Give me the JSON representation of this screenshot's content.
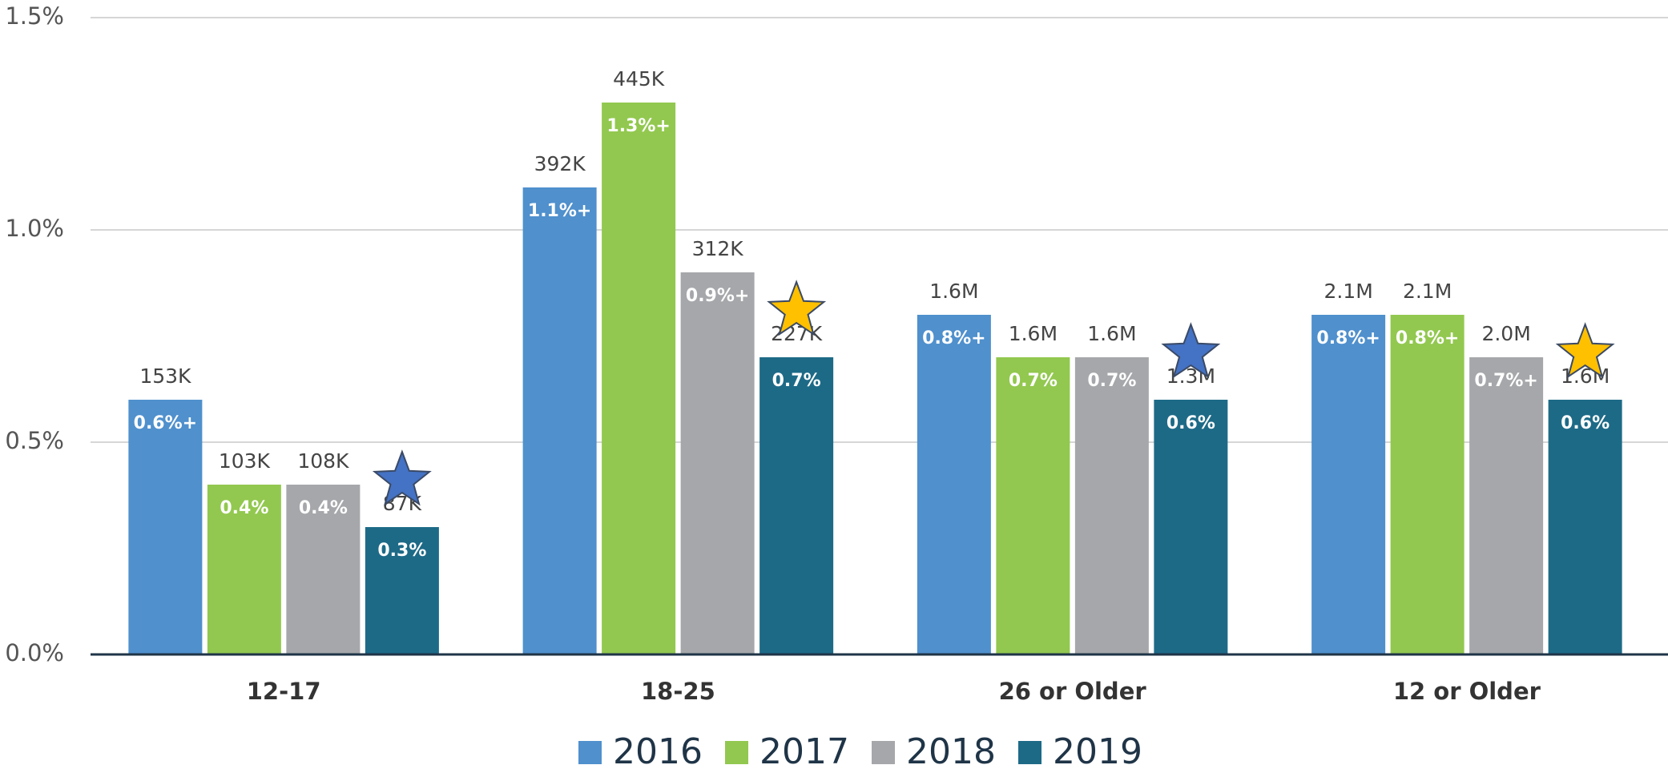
{
  "chart_data": {
    "type": "bar",
    "categories": [
      "12-17",
      "18-25",
      "26 or Older",
      "12 or Older"
    ],
    "series": [
      {
        "name": "2016",
        "color": "#4f90cd",
        "values": [
          0.6,
          1.1,
          0.8,
          0.8
        ],
        "value_labels": [
          "0.6%+",
          "1.1%+",
          "0.8%+",
          "0.8%+"
        ],
        "count_labels": [
          "153K",
          "392K",
          "1.6M",
          "2.1M"
        ]
      },
      {
        "name": "2017",
        "color": "#92c84f",
        "values": [
          0.4,
          1.3,
          0.7,
          0.8
        ],
        "value_labels": [
          "0.4%",
          "1.3%+",
          "0.7%",
          "0.8%+"
        ],
        "count_labels": [
          "103K",
          "445K",
          "1.6M",
          "2.1M"
        ]
      },
      {
        "name": "2018",
        "color": "#a5a7aa",
        "values": [
          0.4,
          0.9,
          0.7,
          0.7
        ],
        "value_labels": [
          "0.4%",
          "0.9%+",
          "0.7%",
          "0.7%+"
        ],
        "count_labels": [
          "108K",
          "312K",
          "1.6M",
          "2.0M"
        ]
      },
      {
        "name": "2019",
        "color": "#1d6a87",
        "values": [
          0.3,
          0.7,
          0.6,
          0.6
        ],
        "value_labels": [
          "0.3%",
          "0.7%",
          "0.6%",
          "0.6%"
        ],
        "count_labels": [
          "87K",
          "227K",
          "1.3M",
          "1.6M"
        ]
      }
    ],
    "star_colors": [
      "#4472c4",
      "#ffc000",
      "#4472c4",
      "#ffc000"
    ],
    "ylim": [
      0,
      1.5
    ],
    "yticks": [
      {
        "value": 0,
        "label": "0.0%"
      },
      {
        "value": 0.5,
        "label": "0.5%"
      },
      {
        "value": 1.0,
        "label": "1.0%"
      },
      {
        "value": 1.5,
        "label": "1.5%"
      }
    ],
    "grid": true,
    "legend": "bottom"
  }
}
